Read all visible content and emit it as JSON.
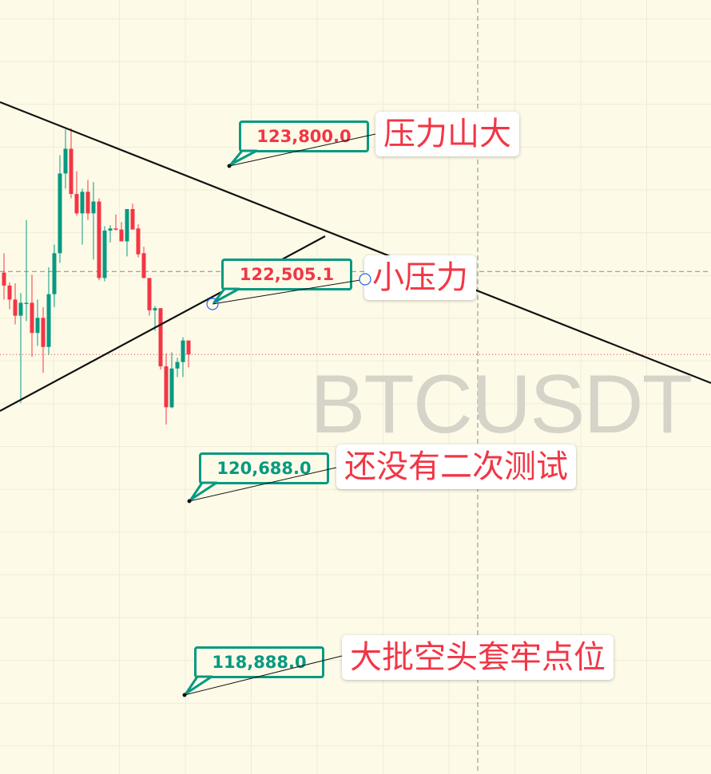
{
  "chart_data": {
    "type": "candlestick",
    "symbol_watermark": "BTCUSDT",
    "colors": {
      "up": "#089981",
      "down": "#f23645",
      "background": "#fdfbe8",
      "trendline": "#111111",
      "annotation_text": "#f23645",
      "callout_border": "#089981"
    },
    "grid": true,
    "candles": [
      {
        "o": 122810,
        "h": 122990,
        "l": 122560,
        "c": 122690
      },
      {
        "o": 122690,
        "h": 122720,
        "l": 122470,
        "c": 122560
      },
      {
        "o": 122560,
        "h": 122710,
        "l": 122330,
        "c": 122410
      },
      {
        "o": 122410,
        "h": 122620,
        "l": 121600,
        "c": 122530
      },
      {
        "o": 122530,
        "h": 123300,
        "l": 122360,
        "c": 122530
      },
      {
        "o": 122530,
        "h": 122790,
        "l": 122030,
        "c": 122250
      },
      {
        "o": 122250,
        "h": 122560,
        "l": 122130,
        "c": 122390
      },
      {
        "o": 122390,
        "h": 122490,
        "l": 121880,
        "c": 122120
      },
      {
        "o": 122120,
        "h": 122860,
        "l": 122050,
        "c": 122610
      },
      {
        "o": 122610,
        "h": 123070,
        "l": 122490,
        "c": 122990
      },
      {
        "o": 122990,
        "h": 123900,
        "l": 122900,
        "c": 123730
      },
      {
        "o": 123730,
        "h": 124140,
        "l": 123590,
        "c": 123960
      },
      {
        "o": 123960,
        "h": 124150,
        "l": 123500,
        "c": 123540
      },
      {
        "o": 123540,
        "h": 123750,
        "l": 123340,
        "c": 123360
      },
      {
        "o": 123360,
        "h": 123590,
        "l": 123070,
        "c": 123560
      },
      {
        "o": 123560,
        "h": 123670,
        "l": 123300,
        "c": 123360
      },
      {
        "o": 123360,
        "h": 123650,
        "l": 122930,
        "c": 123470
      },
      {
        "o": 123470,
        "h": 123500,
        "l": 122740,
        "c": 122760
      },
      {
        "o": 122760,
        "h": 123240,
        "l": 122730,
        "c": 123200
      },
      {
        "o": 123200,
        "h": 123250,
        "l": 123090,
        "c": 123220
      },
      {
        "o": 123220,
        "h": 123350,
        "l": 123200,
        "c": 123210
      },
      {
        "o": 123210,
        "h": 123280,
        "l": 123100,
        "c": 123100
      },
      {
        "o": 123100,
        "h": 123400,
        "l": 122960,
        "c": 123400
      },
      {
        "o": 123400,
        "h": 123450,
        "l": 123210,
        "c": 123210
      },
      {
        "o": 123220,
        "h": 123260,
        "l": 122950,
        "c": 122980
      },
      {
        "o": 122990,
        "h": 123050,
        "l": 122760,
        "c": 122760
      },
      {
        "o": 122760,
        "h": 122760,
        "l": 122410,
        "c": 122460
      },
      {
        "o": 122460,
        "h": 122500,
        "l": 122270,
        "c": 122480
      },
      {
        "o": 122480,
        "h": 122480,
        "l": 121910,
        "c": 121940
      },
      {
        "o": 121940,
        "h": 122060,
        "l": 121400,
        "c": 121560
      },
      {
        "o": 121560,
        "h": 122070,
        "l": 121550,
        "c": 121920
      },
      {
        "o": 121920,
        "h": 122020,
        "l": 121840,
        "c": 121980
      },
      {
        "o": 121980,
        "h": 122210,
        "l": 121840,
        "c": 122180
      },
      {
        "o": 122180,
        "h": 122180,
        "l": 121930,
        "c": 122050
      }
    ],
    "reference_lines": {
      "dashed_gray_price": 122820,
      "current_price_dotted": 122050
    },
    "annotations": [
      {
        "price": "123,800.0",
        "price_value": 123800,
        "price_color": "#f23645",
        "note": "压力山大"
      },
      {
        "price": "122,505.1",
        "price_value": 122505.1,
        "price_color": "#f23645",
        "note": "小压力"
      },
      {
        "price": "120,688.0",
        "price_value": 120688,
        "price_color": "#089981",
        "note": "还没有二次测试"
      },
      {
        "price": "118,888.0",
        "price_value": 118888,
        "price_color": "#089981",
        "note": "大批空头套牢点位"
      }
    ]
  }
}
